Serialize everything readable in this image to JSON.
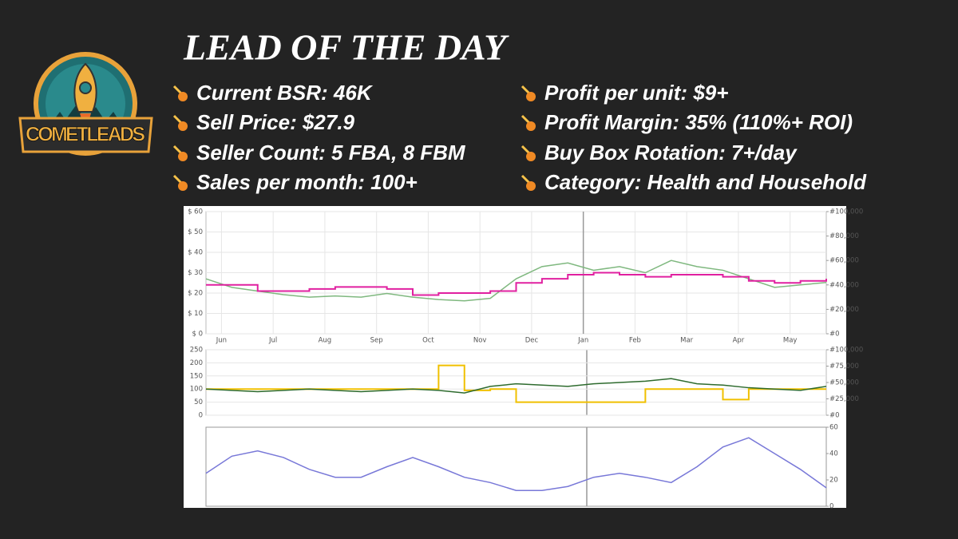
{
  "logo": "COMETLEADS",
  "title": "LEAD OF THE DAY",
  "bullets": [
    "Current BSR: 46K",
    "Sell Price: $27.9",
    "Seller Count: 5 FBA, 8 FBM",
    "Sales per month: 100+",
    "Profit per unit: $9+",
    "Profit Margin: 35% (110%+ ROI)",
    "Buy Box Rotation: 7+/day",
    "Category: Health and Household"
  ],
  "chart_data": [
    {
      "type": "line",
      "x": [
        0,
        0.5,
        1,
        1.5,
        2,
        2.5,
        3,
        3.5,
        4,
        4.5,
        5,
        5.5,
        6,
        6.5,
        7,
        7.5,
        8,
        8.5,
        9,
        9.5,
        10,
        10.5,
        11,
        11.5,
        12
      ],
      "xlim": [
        0,
        12
      ],
      "xticks": [
        {
          "value": 0.3,
          "label": "Jun"
        },
        {
          "value": 1.3,
          "label": "Jul"
        },
        {
          "value": 2.3,
          "label": "Aug"
        },
        {
          "value": 3.3,
          "label": "Sep"
        },
        {
          "value": 4.3,
          "label": "Oct"
        },
        {
          "value": 5.3,
          "label": "Nov"
        },
        {
          "value": 6.3,
          "label": "Dec"
        },
        {
          "value": 7.3,
          "label": "Jan"
        },
        {
          "value": 8.3,
          "label": "Feb"
        },
        {
          "value": 9.3,
          "label": "Mar"
        },
        {
          "value": 10.3,
          "label": "Apr"
        },
        {
          "value": 11.3,
          "label": "May"
        }
      ],
      "ylim": [
        0,
        60
      ],
      "yticks": [
        {
          "value": 0,
          "label": "$ 0"
        },
        {
          "value": 10,
          "label": "$ 10"
        },
        {
          "value": 20,
          "label": "$ 20"
        },
        {
          "value": 30,
          "label": "$ 30"
        },
        {
          "value": 40,
          "label": "$ 40"
        },
        {
          "value": 50,
          "label": "$ 50"
        },
        {
          "value": 60,
          "label": "$ 60"
        }
      ],
      "y2lim": [
        0,
        100000
      ],
      "y2ticks": [
        {
          "value": 0,
          "label": "#0"
        },
        {
          "value": 20000,
          "label": "#20,000"
        },
        {
          "value": 40000,
          "label": "#40,000"
        },
        {
          "value": 60000,
          "label": "#60,000"
        },
        {
          "value": 80000,
          "label": "#80,000"
        },
        {
          "value": 100000,
          "label": "#100,000"
        }
      ],
      "grid": true,
      "series": [
        {
          "color": "#7fb87f",
          "axis": "y2",
          "values": [
            45000,
            38000,
            35000,
            32000,
            30000,
            31000,
            30000,
            33000,
            30000,
            28000,
            27000,
            29000,
            45000,
            55000,
            58000,
            52000,
            55000,
            50000,
            60000,
            55000,
            52000,
            45000,
            38000,
            40000,
            42000
          ]
        },
        {
          "color": "#e020a0",
          "step": true,
          "values": [
            24,
            24,
            21,
            21,
            22,
            23,
            23,
            22,
            19,
            20,
            20,
            21,
            25,
            27,
            29,
            30,
            29,
            28,
            29,
            29,
            28,
            26,
            25,
            26,
            27
          ]
        }
      ]
    },
    {
      "type": "line",
      "x": [
        0,
        0.5,
        1,
        1.5,
        2,
        2.5,
        3,
        3.5,
        4,
        4.5,
        5,
        5.5,
        6,
        6.5,
        7,
        7.5,
        8,
        8.5,
        9,
        9.5,
        10,
        10.5,
        11,
        11.5,
        12
      ],
      "xlim": [
        0,
        12
      ],
      "ylim": [
        0,
        250
      ],
      "yticks": [
        0,
        50,
        100,
        150,
        200,
        250
      ],
      "y2lim": [
        0,
        100000
      ],
      "y2ticks": [
        {
          "value": 0,
          "label": "#0"
        },
        {
          "value": 25000,
          "label": "#25,000"
        },
        {
          "value": 50000,
          "label": "#50,000"
        },
        {
          "value": 75000,
          "label": "#75,000"
        },
        {
          "value": 100000,
          "label": "#100,000"
        }
      ],
      "grid": true,
      "series": [
        {
          "color": "#f0c000",
          "step": true,
          "values": [
            100,
            100,
            100,
            100,
            100,
            100,
            100,
            100,
            100,
            190,
            95,
            100,
            50,
            50,
            50,
            50,
            50,
            100,
            100,
            100,
            60,
            100,
            100,
            100,
            100
          ]
        },
        {
          "color": "#2e6b2e",
          "values": [
            100,
            95,
            90,
            95,
            100,
            95,
            90,
            95,
            100,
            95,
            85,
            110,
            120,
            115,
            110,
            120,
            125,
            130,
            140,
            120,
            115,
            105,
            100,
            95,
            110
          ]
        }
      ]
    },
    {
      "type": "line",
      "x": [
        0,
        0.5,
        1,
        1.5,
        2,
        2.5,
        3,
        3.5,
        4,
        4.5,
        5,
        5.5,
        6,
        6.5,
        7,
        7.5,
        8,
        8.5,
        9,
        9.5,
        10,
        10.5,
        11,
        11.5,
        12
      ],
      "xlim": [
        0,
        12
      ],
      "y2lim": [
        0,
        60
      ],
      "y2ticks": [
        0,
        20,
        40,
        60
      ],
      "grid": false,
      "series": [
        {
          "color": "#7878d8",
          "axis": "y2",
          "values": [
            25,
            38,
            42,
            37,
            28,
            22,
            22,
            30,
            37,
            30,
            22,
            18,
            12,
            12,
            15,
            22,
            25,
            22,
            18,
            30,
            45,
            52,
            40,
            28,
            14
          ]
        }
      ]
    }
  ]
}
